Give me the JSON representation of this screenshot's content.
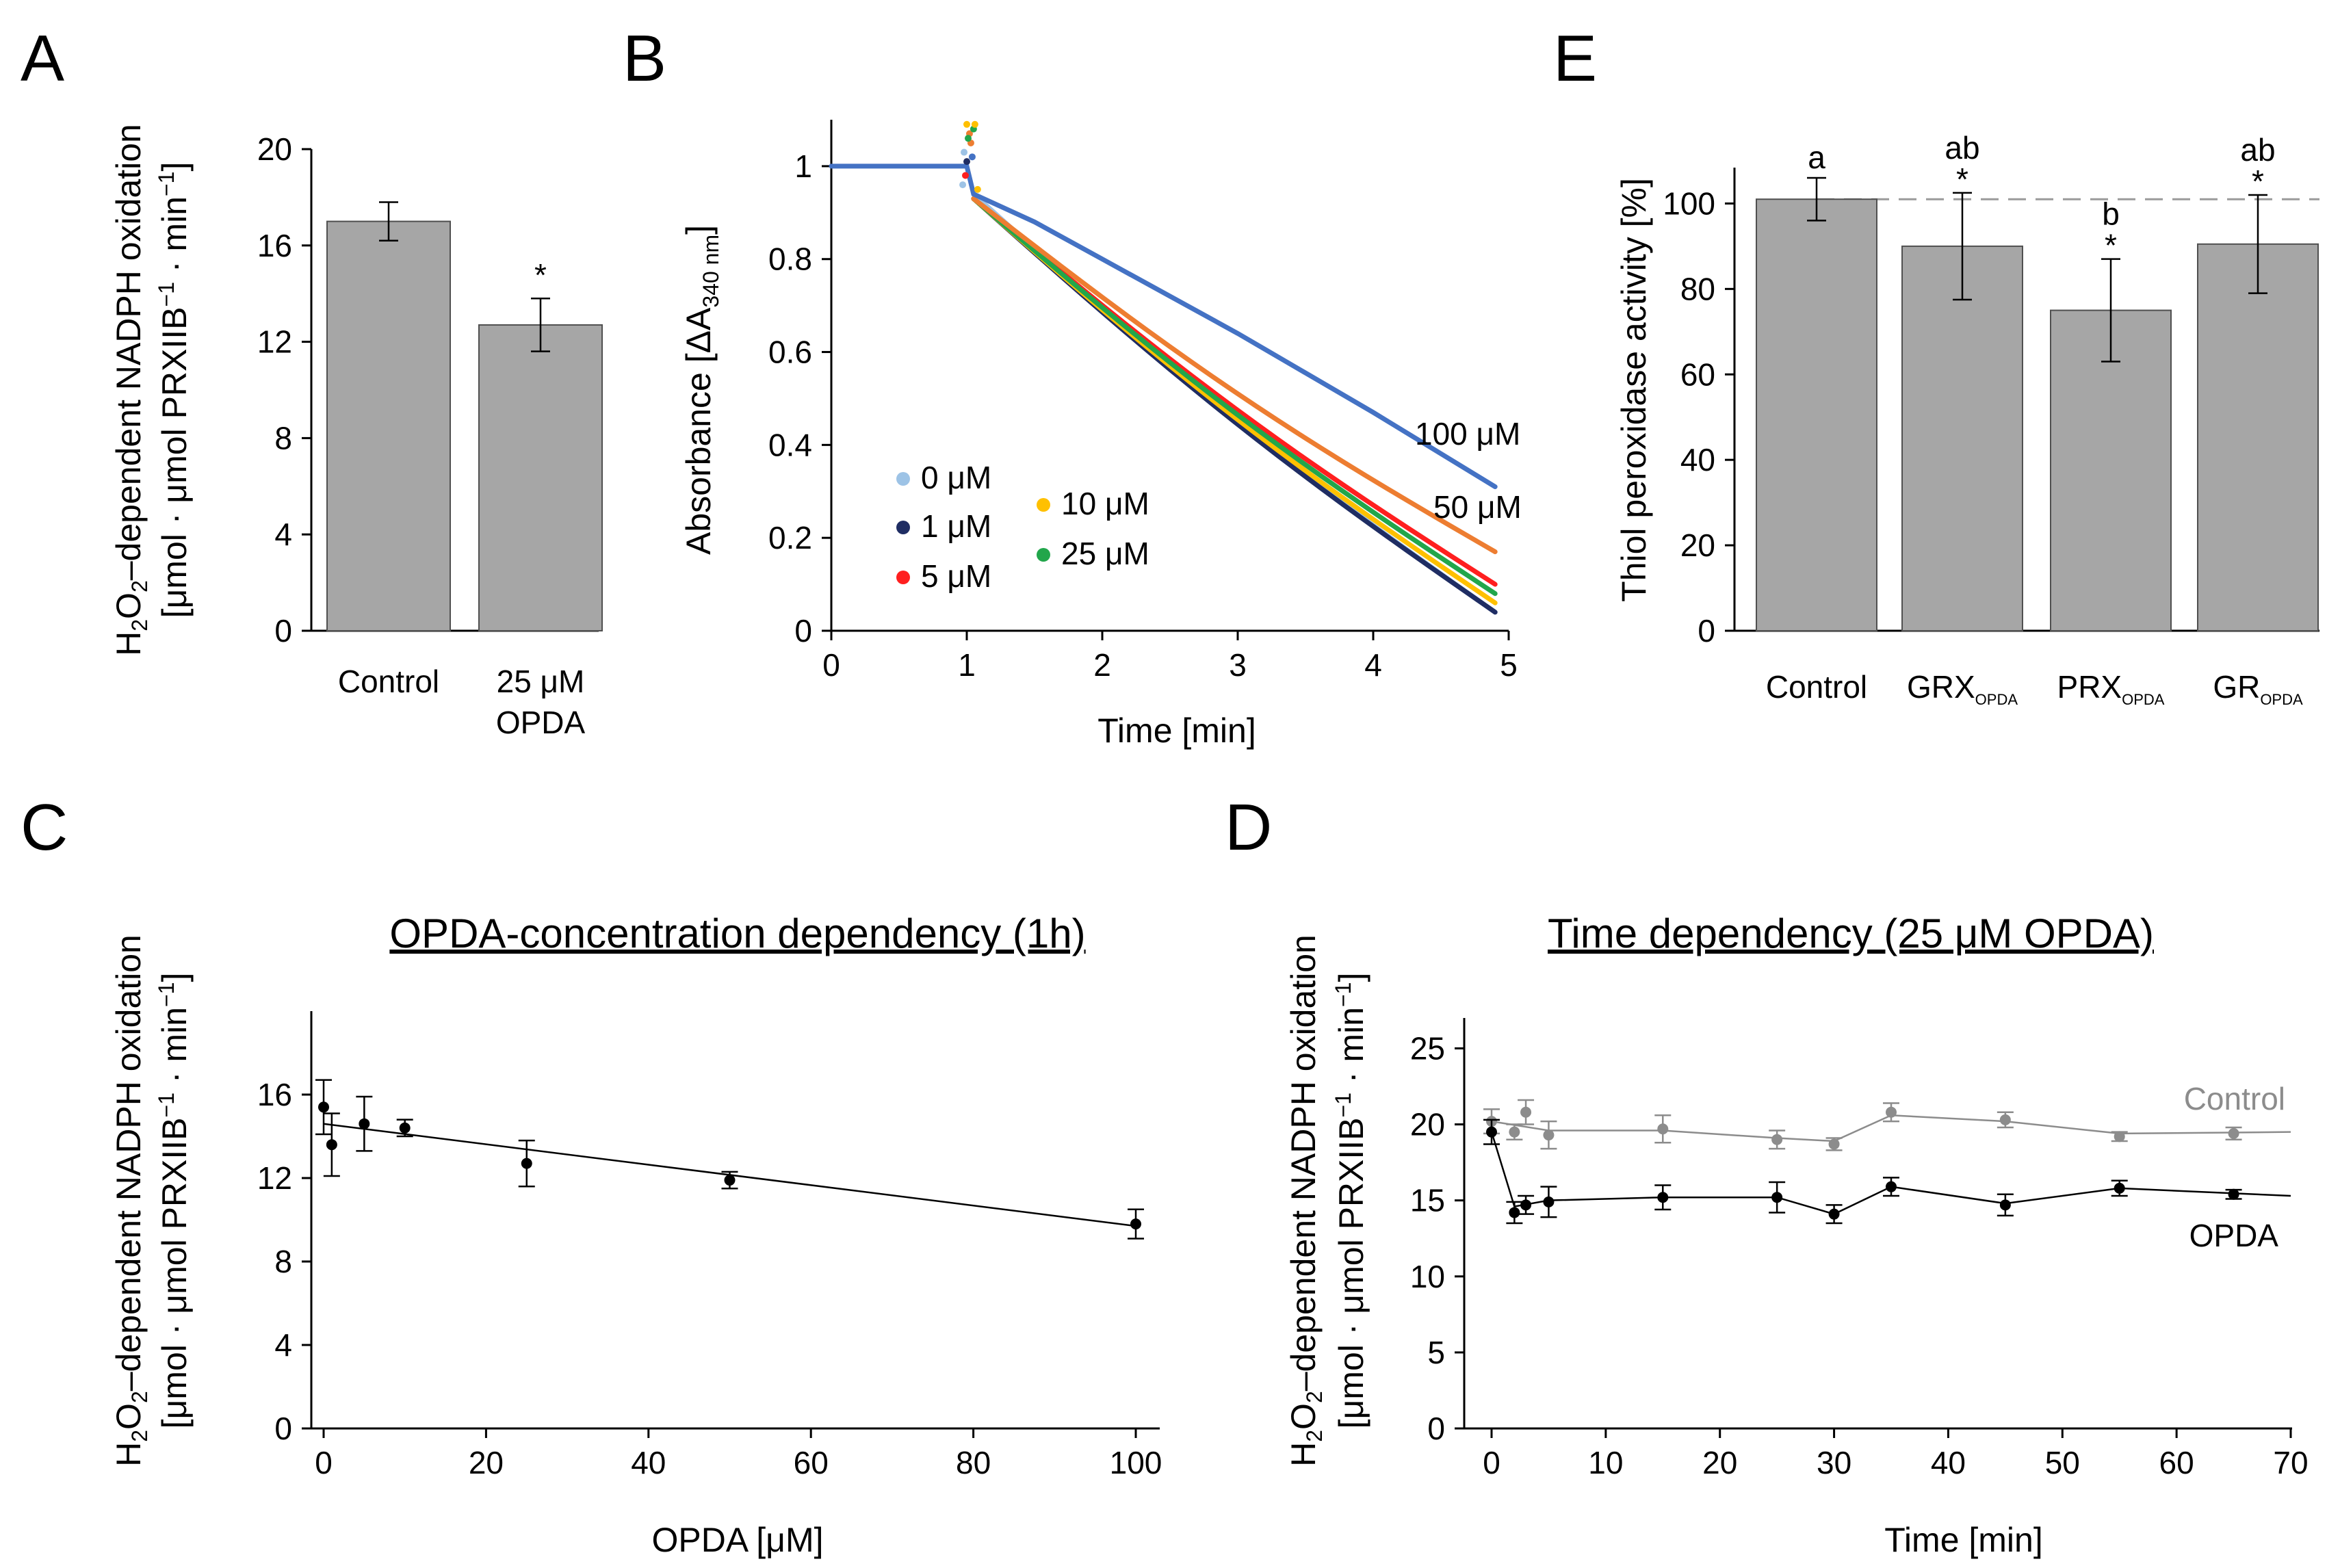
{
  "colors": {
    "bar": "#a6a6a6",
    "bar_edge": "#505050",
    "axis": "#000000",
    "c0": "#9dc3e6",
    "c1": "#1f2d63",
    "c5": "#ff1f1f",
    "c10": "#ffc000",
    "c25": "#22a64b",
    "c50": "#ed7d31",
    "c100": "#4472c4",
    "grey": "#8c8c8c"
  },
  "chart_data": [
    {
      "id": "A",
      "type": "bar",
      "panel_label": "A",
      "ylabel_line1": "H2O2–dependent NADPH oxidation",
      "ylabel_line2": "[μmol · μmol PRXIIB−1 · min−1]",
      "ylim": [
        0,
        20
      ],
      "yticks": [
        "0",
        "4",
        "8",
        "12",
        "16",
        "20"
      ],
      "categories": [
        "Control",
        "25 μM OPDA"
      ],
      "category_lines": [
        [
          "Control"
        ],
        [
          "25 μM",
          "OPDA"
        ]
      ],
      "values": [
        17.0,
        12.7
      ],
      "errors": [
        0.8,
        1.1
      ],
      "annotations": [
        "",
        "*"
      ]
    },
    {
      "id": "B",
      "type": "line",
      "panel_label": "B",
      "ylabel": "Absorbance [ΔA",
      "ylabel_sub": "340 nm",
      "ylabel_close": "]",
      "xlabel": "Time [min]",
      "xlim": [
        0,
        5
      ],
      "ylim": [
        0,
        1.1
      ],
      "xticks": [
        "0",
        "1",
        "2",
        "3",
        "4",
        "5"
      ],
      "yticks": [
        "0",
        "0.2",
        "0.4",
        "0.6",
        "0.8",
        "1"
      ],
      "series": [
        {
          "name": "0 μM",
          "legend": "0 μM",
          "x": [
            1.05,
            4.9
          ],
          "y": [
            0.94,
            0.04
          ],
          "color": "#9dc3e6"
        },
        {
          "name": "1 μM",
          "legend": "1 μM",
          "x": [
            1.05,
            4.9
          ],
          "y": [
            0.93,
            0.04
          ],
          "color": "#1f2d63"
        },
        {
          "name": "5 μM",
          "legend": "5 μM",
          "x": [
            1.05,
            4.9
          ],
          "y": [
            0.93,
            0.1
          ],
          "color": "#ff1f1f"
        },
        {
          "name": "10 μM",
          "legend": "10 μM",
          "x": [
            1.05,
            4.9
          ],
          "y": [
            0.93,
            0.06
          ],
          "color": "#ffc000"
        },
        {
          "name": "25 μM",
          "legend": "25 μM",
          "x": [
            1.05,
            4.9
          ],
          "y": [
            0.93,
            0.08
          ],
          "color": "#22a64b"
        },
        {
          "name": "50 μM",
          "legend": "50 μM",
          "x": [
            1.05,
            4.9
          ],
          "y": [
            0.93,
            0.17
          ],
          "color": "#ed7d31"
        },
        {
          "name": "100 μM",
          "legend": "100 μM",
          "x": [
            0,
            1,
            1.05,
            1.5,
            2,
            3,
            4,
            4.9
          ],
          "y": [
            1.0,
            1.0,
            0.94,
            0.88,
            0.8,
            0.64,
            0.47,
            0.31
          ],
          "color": "#4472c4"
        }
      ],
      "line_labels": [
        "100 μM",
        "50 μM"
      ],
      "legend": [
        "0 μM",
        "1 μM",
        "5 μM",
        "10 μM",
        "25 μM"
      ]
    },
    {
      "id": "E",
      "type": "bar",
      "panel_label": "E",
      "ylabel": "Thiol peroxidase activity [%]",
      "ylim": [
        0,
        110
      ],
      "yticks": [
        "0",
        "20",
        "40",
        "60",
        "80",
        "100"
      ],
      "categories": [
        "Control",
        "GRX_OPDA",
        "PRX_OPDA",
        "GR_OPDA"
      ],
      "category_main": [
        "Control",
        "GRX",
        "PRX",
        "GR"
      ],
      "category_sub": [
        "",
        "OPDA",
        "OPDA",
        "OPDA"
      ],
      "values": [
        101,
        90,
        75,
        90.5
      ],
      "errors": [
        5,
        12.5,
        12,
        11.5
      ],
      "letters": [
        "a",
        "ab",
        "b",
        "ab"
      ],
      "stars": [
        "",
        "*",
        "*",
        "*"
      ],
      "reference_line": 101
    },
    {
      "id": "C",
      "type": "scatter",
      "panel_label": "C",
      "title": "OPDA-concentration dependency (1h)",
      "ylabel_line1": "H2O2–dependent NADPH oxidation",
      "ylabel_line2": "[μmol · μmol PRXIIB−1 · min−1]",
      "xlabel": "OPDA [μM]",
      "xlim": [
        0,
        100
      ],
      "ylim": [
        0,
        20
      ],
      "xticks": [
        "0",
        "20",
        "40",
        "60",
        "80",
        "100"
      ],
      "yticks": [
        "0",
        "4",
        "8",
        "12",
        "16"
      ],
      "x": [
        0,
        1,
        5,
        10,
        25,
        50,
        100
      ],
      "y": [
        15.4,
        13.6,
        14.6,
        14.4,
        12.7,
        11.9,
        9.8
      ],
      "errors": [
        1.3,
        1.5,
        1.3,
        0.4,
        1.1,
        0.4,
        0.7
      ],
      "fit": {
        "x": [
          0,
          100
        ],
        "y": [
          14.6,
          9.7
        ]
      }
    },
    {
      "id": "D",
      "type": "line",
      "panel_label": "D",
      "title": "Time dependency (25 μM OPDA)",
      "ylabel_line1": "H2O2–dependent NADPH oxidation",
      "ylabel_line2": "[μmol · μmol PRXIIB−1 · min−1]",
      "xlabel": "Time [min]",
      "xlim": [
        0,
        70
      ],
      "ylim": [
        0,
        27
      ],
      "xticks": [
        "0",
        "10",
        "20",
        "30",
        "40",
        "50",
        "60",
        "70"
      ],
      "yticks": [
        "0",
        "5",
        "10",
        "15",
        "20",
        "25"
      ],
      "series": [
        {
          "name": "Control",
          "color": "#8c8c8c",
          "x": [
            0,
            2,
            3,
            5,
            15,
            25,
            30,
            35,
            45,
            55,
            65
          ],
          "y": [
            20.2,
            19.5,
            20.8,
            19.3,
            19.7,
            19.0,
            18.7,
            20.8,
            20.3,
            19.2,
            19.4
          ],
          "errors": [
            0.8,
            0.5,
            0.8,
            0.9,
            0.9,
            0.6,
            0.4,
            0.6,
            0.5,
            0.3,
            0.4
          ],
          "line_x": [
            0,
            5,
            15,
            25,
            30,
            35,
            45,
            55,
            70
          ],
          "line_y": [
            20.2,
            19.6,
            19.6,
            19.1,
            18.9,
            20.6,
            20.2,
            19.4,
            19.5
          ]
        },
        {
          "name": "OPDA",
          "color": "#000000",
          "x": [
            0,
            2,
            3,
            5,
            15,
            25,
            30,
            35,
            45,
            55,
            65
          ],
          "y": [
            19.5,
            14.2,
            14.7,
            14.9,
            15.2,
            15.2,
            14.1,
            15.9,
            14.7,
            15.8,
            15.4
          ],
          "errors": [
            0.8,
            0.7,
            0.6,
            1.0,
            0.8,
            1.0,
            0.6,
            0.6,
            0.7,
            0.5,
            0.3
          ],
          "line_x": [
            0,
            2,
            5,
            15,
            25,
            30,
            35,
            45,
            55,
            70
          ],
          "line_y": [
            19.5,
            14.6,
            15.0,
            15.2,
            15.2,
            14.1,
            15.9,
            14.8,
            15.8,
            15.3
          ]
        }
      ]
    }
  ]
}
